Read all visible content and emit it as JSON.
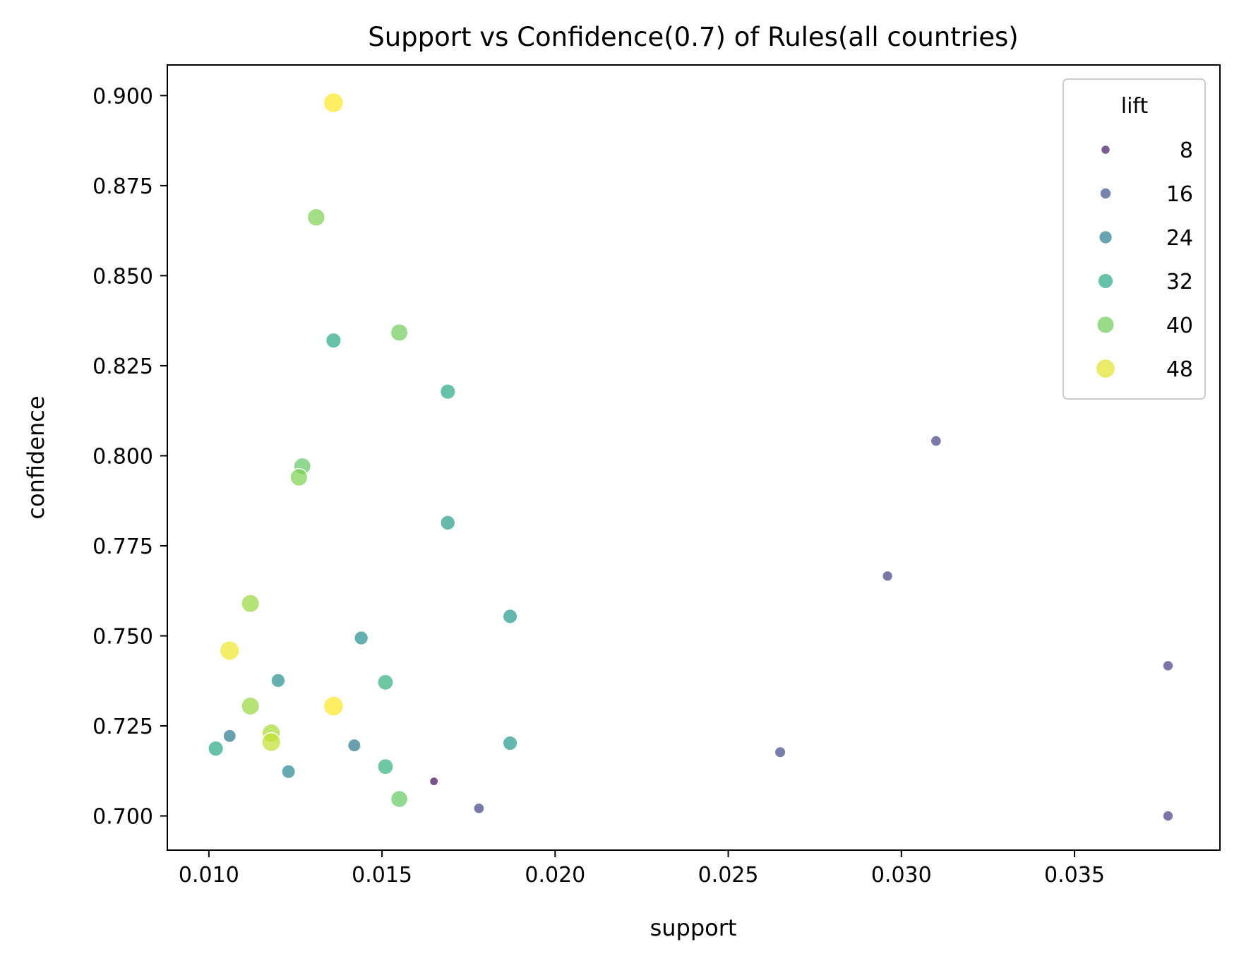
{
  "chart_data": {
    "type": "scatter",
    "title": "Support vs Confidence(0.7) of Rules(all countries)",
    "xlabel": "support",
    "ylabel": "confidence",
    "xlim": [
      0.0088,
      0.0392
    ],
    "ylim": [
      0.6905,
      0.9085
    ],
    "xticks": [
      0.01,
      0.015,
      0.02,
      0.025,
      0.03,
      0.035
    ],
    "xtick_labels": [
      "0.010",
      "0.015",
      "0.020",
      "0.025",
      "0.030",
      "0.035"
    ],
    "yticks": [
      0.7,
      0.725,
      0.75,
      0.775,
      0.8,
      0.825,
      0.85,
      0.875,
      0.9
    ],
    "ytick_labels": [
      "0.700",
      "0.725",
      "0.750",
      "0.775",
      "0.800",
      "0.825",
      "0.850",
      "0.875",
      "0.900"
    ],
    "grid": false,
    "legend": {
      "title": "lift",
      "placement": "top-right",
      "entries": [
        {
          "label": "8",
          "lift": 8
        },
        {
          "label": "16",
          "lift": 16
        },
        {
          "label": "24",
          "lift": 24
        },
        {
          "label": "32",
          "lift": 32
        },
        {
          "label": "40",
          "lift": 40
        },
        {
          "label": "48",
          "lift": 48
        }
      ]
    },
    "color_scale": "viridis",
    "lift_range": [
      5,
      50
    ],
    "points": [
      {
        "support": 0.0136,
        "confidence": 0.898,
        "lift": 50
      },
      {
        "support": 0.0131,
        "confidence": 0.8662,
        "lift": 41
      },
      {
        "support": 0.0136,
        "confidence": 0.832,
        "lift": 32
      },
      {
        "support": 0.0155,
        "confidence": 0.8342,
        "lift": 40
      },
      {
        "support": 0.0169,
        "confidence": 0.8178,
        "lift": 32
      },
      {
        "support": 0.0127,
        "confidence": 0.7971,
        "lift": 39
      },
      {
        "support": 0.0126,
        "confidence": 0.794,
        "lift": 41
      },
      {
        "support": 0.0169,
        "confidence": 0.7814,
        "lift": 30
      },
      {
        "support": 0.031,
        "confidence": 0.8041,
        "lift": 14
      },
      {
        "support": 0.0296,
        "confidence": 0.7666,
        "lift": 13
      },
      {
        "support": 0.0112,
        "confidence": 0.759,
        "lift": 43
      },
      {
        "support": 0.0106,
        "confidence": 0.7459,
        "lift": 49
      },
      {
        "support": 0.0187,
        "confidence": 0.7554,
        "lift": 29
      },
      {
        "support": 0.0144,
        "confidence": 0.7494,
        "lift": 27
      },
      {
        "support": 0.012,
        "confidence": 0.7376,
        "lift": 27
      },
      {
        "support": 0.0151,
        "confidence": 0.7371,
        "lift": 34
      },
      {
        "support": 0.0112,
        "confidence": 0.7305,
        "lift": 43
      },
      {
        "support": 0.0136,
        "confidence": 0.7305,
        "lift": 50
      },
      {
        "support": 0.0377,
        "confidence": 0.7417,
        "lift": 13
      },
      {
        "support": 0.0118,
        "confidence": 0.723,
        "lift": 44
      },
      {
        "support": 0.0118,
        "confidence": 0.7205,
        "lift": 46
      },
      {
        "support": 0.0106,
        "confidence": 0.7222,
        "lift": 23
      },
      {
        "support": 0.0102,
        "confidence": 0.7187,
        "lift": 32
      },
      {
        "support": 0.0142,
        "confidence": 0.7196,
        "lift": 23
      },
      {
        "support": 0.0187,
        "confidence": 0.7202,
        "lift": 29
      },
      {
        "support": 0.0123,
        "confidence": 0.7123,
        "lift": 26
      },
      {
        "support": 0.0151,
        "confidence": 0.7137,
        "lift": 34
      },
      {
        "support": 0.0265,
        "confidence": 0.7177,
        "lift": 15
      },
      {
        "support": 0.0165,
        "confidence": 0.7096,
        "lift": 6
      },
      {
        "support": 0.0155,
        "confidence": 0.7047,
        "lift": 39
      },
      {
        "support": 0.0178,
        "confidence": 0.7021,
        "lift": 14
      },
      {
        "support": 0.0377,
        "confidence": 0.7,
        "lift": 13
      }
    ]
  }
}
